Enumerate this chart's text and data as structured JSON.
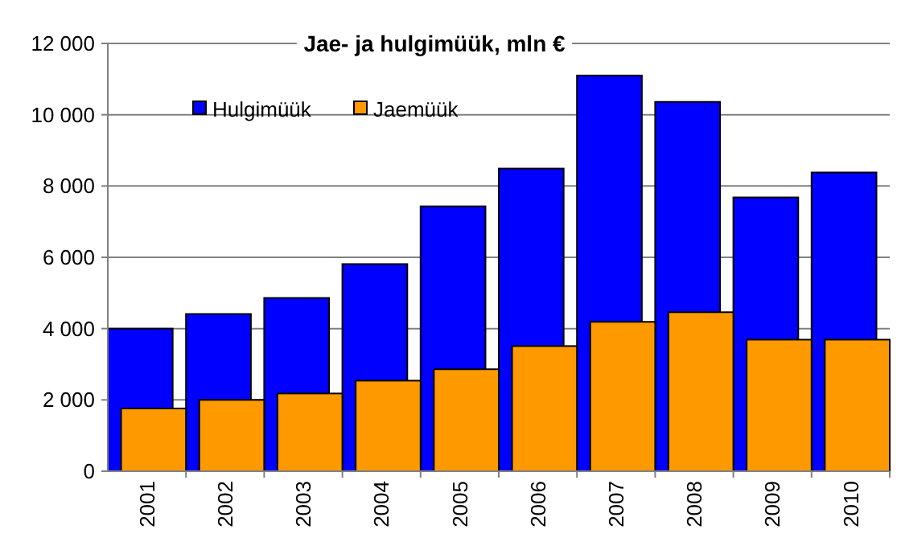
{
  "chart_data": {
    "type": "bar",
    "title": "Jae- ja hulgimüük, mln €",
    "categories": [
      "2001",
      "2002",
      "2003",
      "2004",
      "2005",
      "2006",
      "2007",
      "2008",
      "2009",
      "2010"
    ],
    "series": [
      {
        "name": "Hulgimüük",
        "color": "#0000ff",
        "values": [
          4000,
          4410,
          4860,
          5810,
          7430,
          8490,
          11100,
          10360,
          7680,
          8380
        ]
      },
      {
        "name": "Jaemüük",
        "color": "#ff9900",
        "values": [
          1760,
          2000,
          2180,
          2540,
          2860,
          3510,
          4190,
          4460,
          3690,
          3690
        ]
      }
    ],
    "ylim": [
      0,
      12000
    ],
    "yticks": [
      {
        "value": 0,
        "label": "0"
      },
      {
        "value": 2000,
        "label": "2 000"
      },
      {
        "value": 4000,
        "label": "4 000"
      },
      {
        "value": 6000,
        "label": "6 000"
      },
      {
        "value": 8000,
        "label": "8 000"
      },
      {
        "value": 10000,
        "label": "10 000"
      },
      {
        "value": 12000,
        "label": "12 000"
      }
    ],
    "grid": "y",
    "legend": "top left"
  }
}
